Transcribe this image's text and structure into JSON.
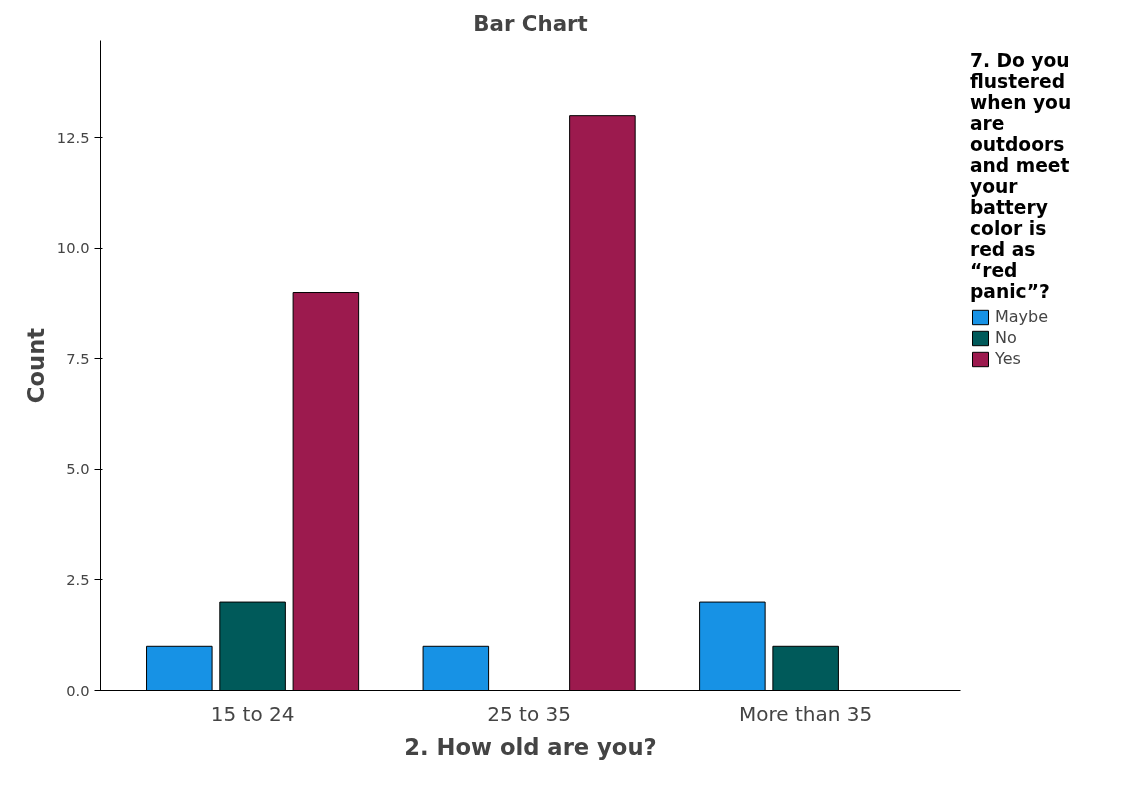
{
  "chart_data": {
    "type": "bar",
    "title": "Bar Chart",
    "xlabel": "2. How old are you?",
    "ylabel": "Count",
    "legend_title": "7. Do you flustered when you are outdoors and meet your battery color is red as “red panic”?",
    "categories": [
      "15 to 24",
      "25 to 35",
      "More than 35"
    ],
    "series": [
      {
        "name": "Maybe",
        "color": "#1792e5",
        "values": [
          1,
          1,
          2
        ]
      },
      {
        "name": "No",
        "color": "#005a5a",
        "values": [
          2,
          null,
          1
        ]
      },
      {
        "name": "Yes",
        "color": "#9c1a4e",
        "values": [
          9,
          13,
          null
        ]
      }
    ],
    "ylim": [
      0,
      14.7
    ],
    "yticks": [
      {
        "value": 0,
        "label": "0.0"
      },
      {
        "value": 2.5,
        "label": "2.5"
      },
      {
        "value": 5,
        "label": "5.0"
      },
      {
        "value": 7.5,
        "label": "7.5"
      },
      {
        "value": 10,
        "label": "10.0"
      },
      {
        "value": 12.5,
        "label": "12.5"
      }
    ],
    "grid": false,
    "legend": "right"
  }
}
